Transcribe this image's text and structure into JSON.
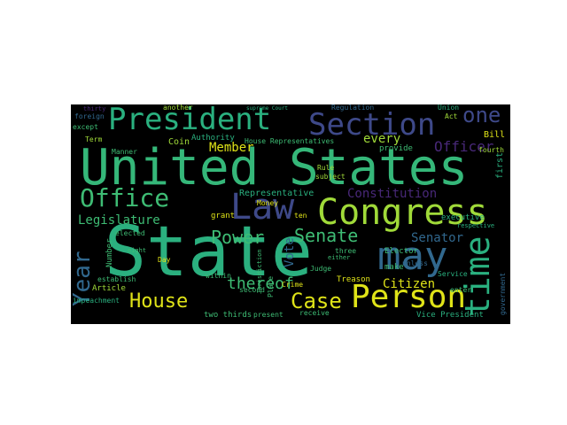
{
  "words": {
    "state": "State",
    "united_states": "United States",
    "president": "President",
    "section": "Section",
    "law": "Law",
    "congress": "Congress",
    "may": "may",
    "person": "Person",
    "office": "Office",
    "house": "House",
    "case": "Case",
    "time": "time",
    "senate": "Senate",
    "year": "Year",
    "power": "Power",
    "constitution": "Constitution",
    "legislature": "Legislature",
    "one": "one",
    "officer": "Officer",
    "citizen": "Citizen",
    "thereof": "thereof",
    "vote": "Vote",
    "member": "Member",
    "senator": "Senator",
    "every": "every",
    "representative": "Representative",
    "house_representatives": "House Representatives",
    "executive": "executive",
    "bill": "Bill",
    "article": "Article",
    "treason": "Treason",
    "vice_president": "Vice President",
    "two_thirds": "two thirds",
    "impeachment": "impeachment",
    "establish": "establish",
    "make": "make",
    "judge": "Judge",
    "elector": "Elector",
    "service": "Service",
    "regulation": "Regulation",
    "union": "Union",
    "act": "Act",
    "authority": "Authority",
    "day": "Day",
    "grant": "grant",
    "ten": "ten",
    "money": "Money",
    "coin": "Coin",
    "another": "another",
    "foreign": "foreign",
    "except": "except",
    "term": "Term",
    "second": "second",
    "subject": "subject",
    "rule": "Rule",
    "provide": "provide",
    "fourth": "fourth",
    "first": "first",
    "enter": "enter",
    "present": "present",
    "receive": "receive",
    "within": "within",
    "elected": "elected",
    "number": "Number",
    "three": "three",
    "crime": "Crime",
    "place": "Place",
    "government": "government",
    "respective": "respective",
    "either": "either",
    "unless": "unless",
    "manner": "Manner",
    "supreme_court": "supreme Court",
    "jurisdiction": "Jurisdiction",
    "eight": "eight",
    "thirty": "thirty",
    "two": "two"
  },
  "colors": {
    "background": "#000000",
    "page": "#ffffff",
    "teal": "#2ab07f",
    "green": "#3ebc74",
    "lime": "#a0da39",
    "yellow": "#dfe318",
    "blue": "#3e4989",
    "darkblue": "#31688e",
    "cyan": "#1f9e89",
    "purple": "#482878"
  }
}
